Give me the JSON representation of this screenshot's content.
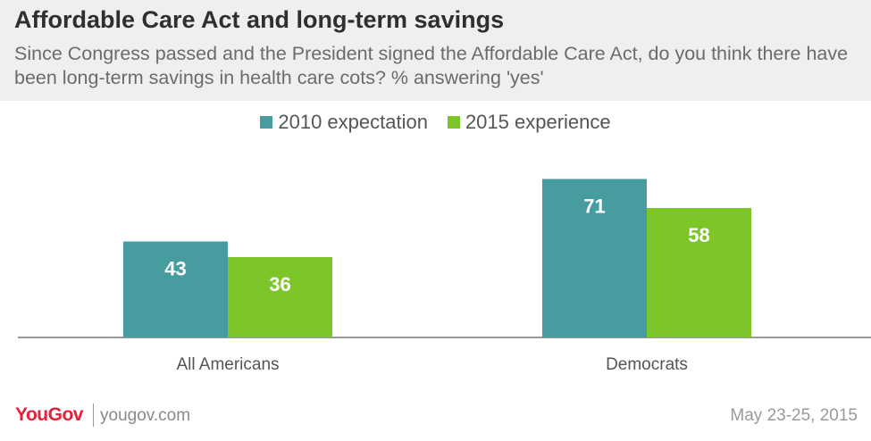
{
  "header": {
    "title": "Affordable Care Act and long-term savings",
    "subtitle": "Since Congress passed and the President signed the Affordable Care Act, do you think there have been long-term savings in health care cots? % answering 'yes'"
  },
  "colors": {
    "series_2010": "#469c9f",
    "series_2015": "#7dc62a",
    "axis": "#999999",
    "brand": "#e3213a"
  },
  "chart_data": {
    "type": "bar",
    "title": "Affordable Care Act and long-term savings",
    "categories": [
      "All Americans",
      "Democrats"
    ],
    "series": [
      {
        "name": "2010 expectation",
        "values": [
          43,
          71
        ]
      },
      {
        "name": "2015 experience",
        "values": [
          36,
          58
        ]
      }
    ],
    "ylim": [
      0,
      100
    ],
    "grid": false,
    "legend": "top-center",
    "data_labels": true
  },
  "footer": {
    "logo": "YouGov",
    "site": "yougov.com",
    "date": "May 23-25, 2015"
  }
}
